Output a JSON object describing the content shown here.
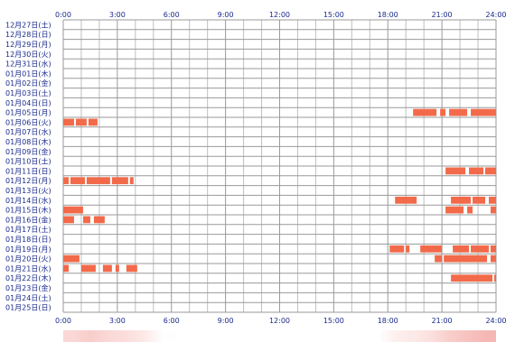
{
  "chart_data": {
    "type": "heatmap",
    "x_ticks": [
      "0:00",
      "3:00",
      "6:00",
      "9:00",
      "12:00",
      "15:00",
      "18:00",
      "21:00",
      "24:00"
    ],
    "xlim": [
      0,
      24
    ],
    "grid": true,
    "days": [
      "12月27日(土)",
      "12月28日(日)",
      "12月29日(月)",
      "12月30日(火)",
      "12月31日(水)",
      "01月01日(木)",
      "01月02日(金)",
      "01月03日(土)",
      "01月04日(日)",
      "01月05日(月)",
      "01月06日(火)",
      "01月07日(水)",
      "01月08日(木)",
      "01月09日(金)",
      "01月10日(土)",
      "01月11日(日)",
      "01月12日(月)",
      "01月13日(火)",
      "01月14日(水)",
      "01月15日(木)",
      "01月16日(金)",
      "01月17日(土)",
      "01月18日(日)",
      "01月19日(月)",
      "01月20日(火)",
      "01月21日(水)",
      "01月22日(木)",
      "01月23日(金)",
      "01月24日(土)",
      "01月25日(日)"
    ],
    "activity_color": "#f26a4a",
    "activity": [
      {
        "day": 9,
        "start": 19.4,
        "end": 20.7
      },
      {
        "day": 9,
        "start": 20.9,
        "end": 21.2
      },
      {
        "day": 9,
        "start": 21.4,
        "end": 22.4
      },
      {
        "day": 9,
        "start": 22.6,
        "end": 24.0
      },
      {
        "day": 10,
        "start": 0.0,
        "end": 0.6
      },
      {
        "day": 10,
        "start": 0.7,
        "end": 1.3
      },
      {
        "day": 10,
        "start": 1.4,
        "end": 1.9
      },
      {
        "day": 15,
        "start": 21.2,
        "end": 22.3
      },
      {
        "day": 15,
        "start": 22.5,
        "end": 23.3
      },
      {
        "day": 15,
        "start": 23.4,
        "end": 24.0
      },
      {
        "day": 16,
        "start": 0.0,
        "end": 0.3
      },
      {
        "day": 16,
        "start": 0.4,
        "end": 1.2
      },
      {
        "day": 16,
        "start": 1.3,
        "end": 2.6
      },
      {
        "day": 16,
        "start": 2.7,
        "end": 3.6
      },
      {
        "day": 16,
        "start": 3.7,
        "end": 3.9
      },
      {
        "day": 18,
        "start": 18.4,
        "end": 19.6
      },
      {
        "day": 18,
        "start": 21.5,
        "end": 22.6
      },
      {
        "day": 18,
        "start": 22.7,
        "end": 23.4
      },
      {
        "day": 18,
        "start": 23.6,
        "end": 24.0
      },
      {
        "day": 19,
        "start": 0.0,
        "end": 1.1
      },
      {
        "day": 19,
        "start": 21.2,
        "end": 22.2
      },
      {
        "day": 19,
        "start": 22.4,
        "end": 22.7
      },
      {
        "day": 19,
        "start": 23.7,
        "end": 24.0
      },
      {
        "day": 20,
        "start": 0.0,
        "end": 0.6
      },
      {
        "day": 20,
        "start": 1.1,
        "end": 1.5
      },
      {
        "day": 20,
        "start": 1.7,
        "end": 2.3
      },
      {
        "day": 18,
        "start": 22.1,
        "end": 22.3
      },
      {
        "day": 23,
        "start": 18.1,
        "end": 18.9
      },
      {
        "day": 23,
        "start": 19.0,
        "end": 19.2
      },
      {
        "day": 23,
        "start": 19.8,
        "end": 21.0
      },
      {
        "day": 23,
        "start": 21.6,
        "end": 22.5
      },
      {
        "day": 23,
        "start": 22.6,
        "end": 23.6
      },
      {
        "day": 23,
        "start": 23.7,
        "end": 24.0
      },
      {
        "day": 24,
        "start": 0.0,
        "end": 0.9
      },
      {
        "day": 24,
        "start": 20.6,
        "end": 21.0
      },
      {
        "day": 24,
        "start": 21.1,
        "end": 23.5
      },
      {
        "day": 24,
        "start": 23.7,
        "end": 24.0
      },
      {
        "day": 25,
        "start": 0.0,
        "end": 0.3
      },
      {
        "day": 25,
        "start": 1.0,
        "end": 1.8
      },
      {
        "day": 25,
        "start": 2.2,
        "end": 2.7
      },
      {
        "day": 25,
        "start": 2.9,
        "end": 3.1
      },
      {
        "day": 25,
        "start": 3.5,
        "end": 4.1
      },
      {
        "day": 26,
        "start": 21.5,
        "end": 23.8
      },
      {
        "day": 26,
        "start": 23.9,
        "end": 24.0
      }
    ],
    "density_strip": {
      "colors": {
        "low": "#ffffff",
        "high": "#f0908a"
      },
      "hourly_intensity": [
        0.35,
        0.45,
        0.35,
        0.3,
        0.2,
        0.02,
        0.0,
        0.0,
        0.0,
        0.0,
        0.0,
        0.0,
        0.0,
        0.0,
        0.0,
        0.0,
        0.0,
        0.0,
        0.15,
        0.2,
        0.3,
        0.45,
        0.55,
        0.65
      ]
    }
  }
}
